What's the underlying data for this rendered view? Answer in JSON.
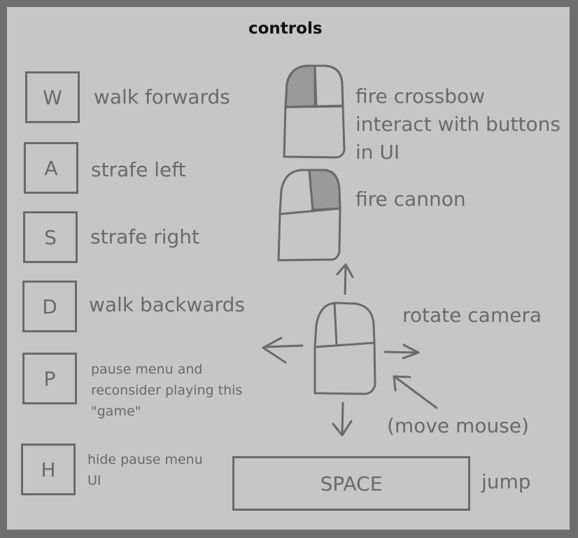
{
  "title": "controls",
  "keys": [
    {
      "key": "W",
      "action": "walk forwards"
    },
    {
      "key": "A",
      "action": "strafe left"
    },
    {
      "key": "S",
      "action": "strafe right"
    },
    {
      "key": "D",
      "action": "walk backwards"
    },
    {
      "key": "P",
      "action": "pause menu and\nreconsider playing this\n\"game\""
    },
    {
      "key": "H",
      "action": "hide pause menu\nUI"
    }
  ],
  "mouse": {
    "left_click": "fire crossbow\ninteract with buttons\n in UI",
    "right_click": "fire cannon",
    "move": "rotate camera",
    "move_hint": "(move mouse)"
  },
  "space": {
    "key": "SPACE",
    "action": "jump"
  },
  "colors": {
    "outer": "#6e6e6e",
    "panel": "#c6c6c6",
    "ink": "#6a6a6a",
    "highlight": "#9a9a9a",
    "title": "#111111"
  }
}
